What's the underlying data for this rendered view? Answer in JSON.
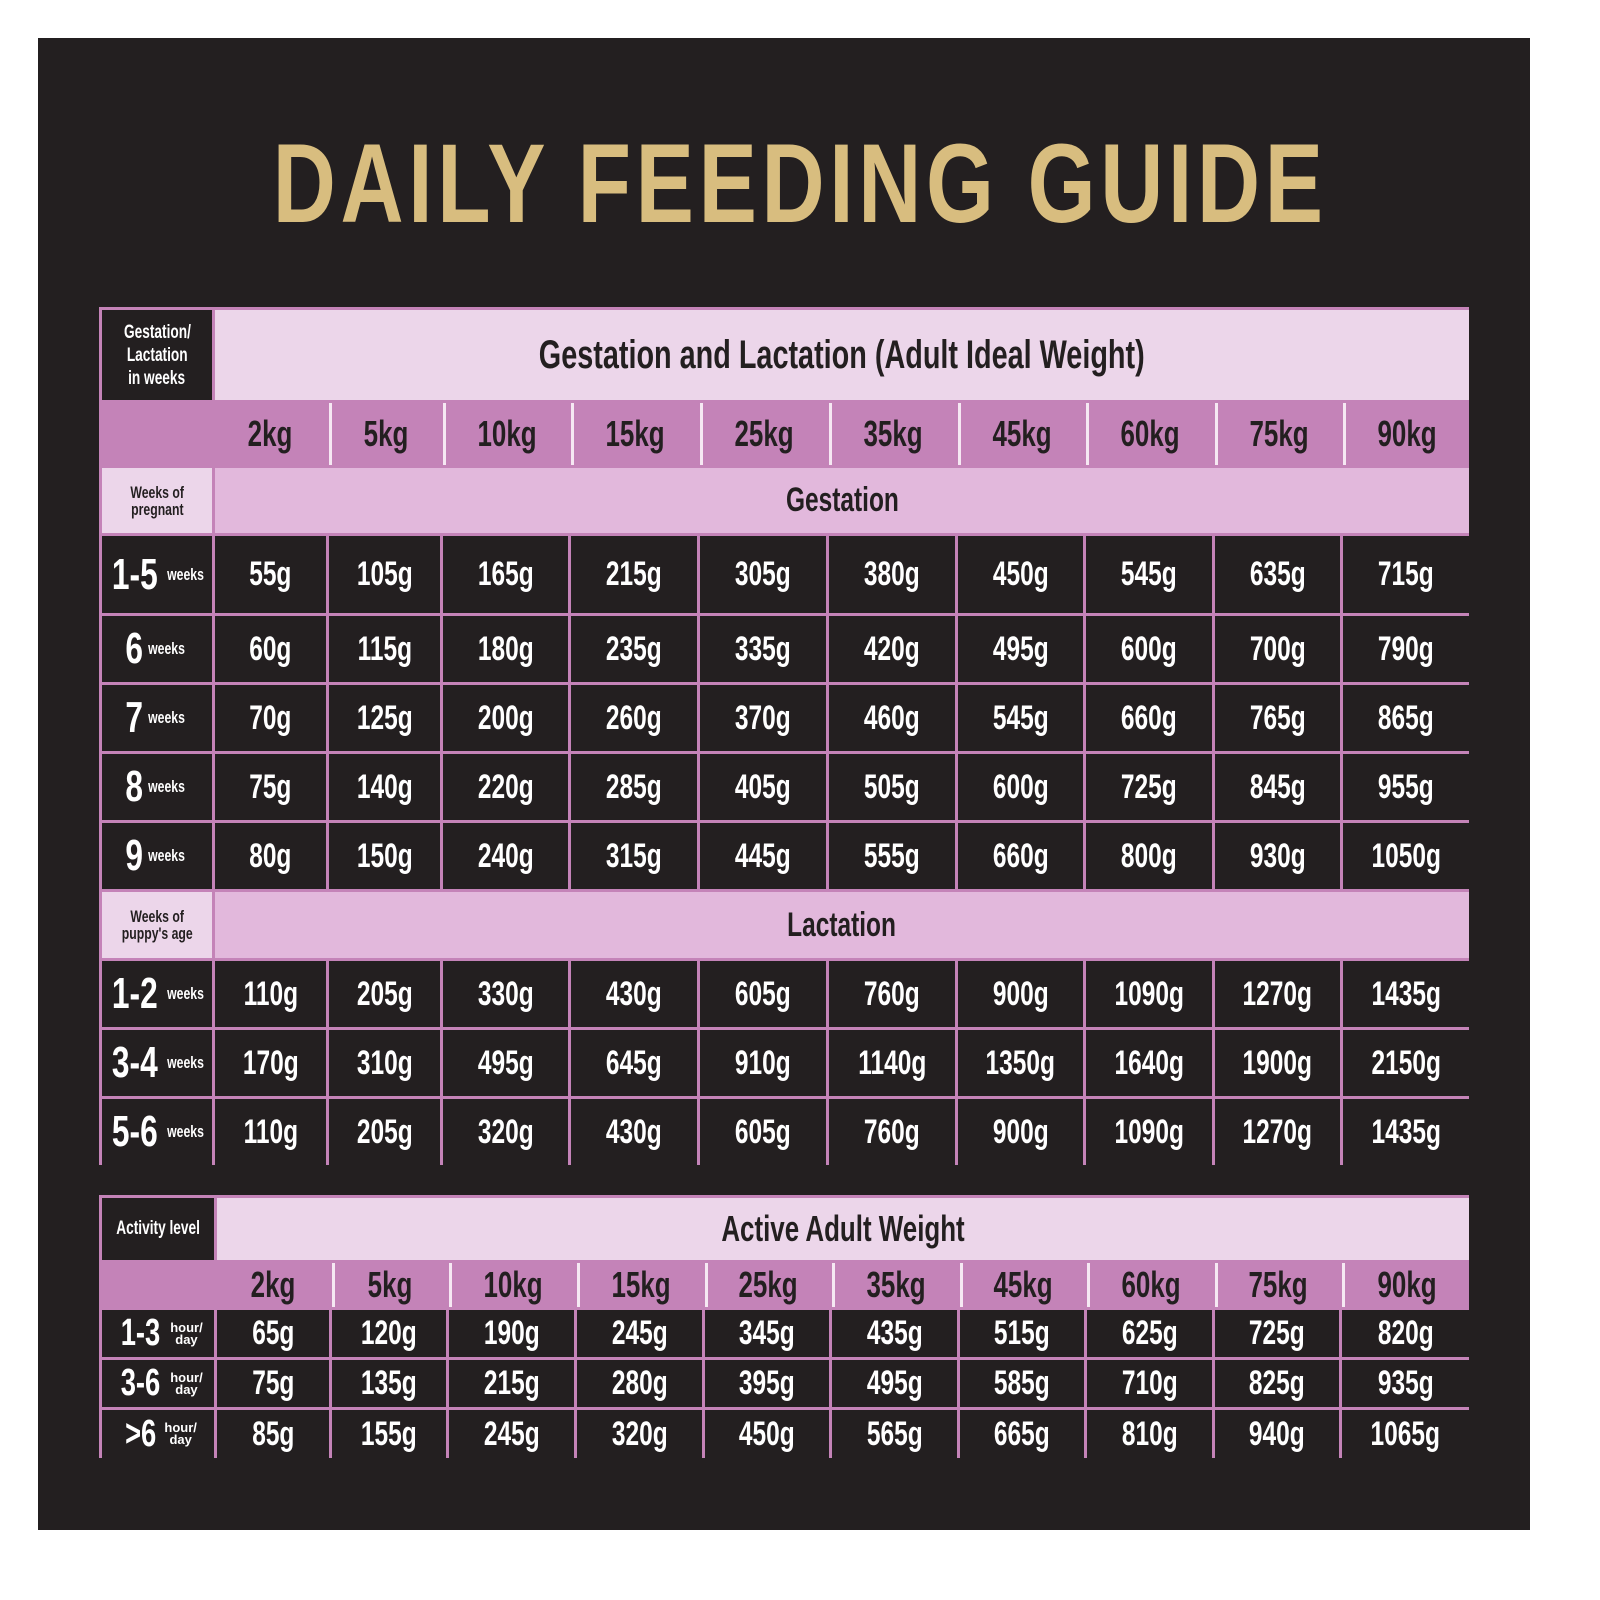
{
  "title": "DAILY FEEDING GUIDE",
  "colors": {
    "background": "#231f20",
    "title": "#d8bd7f",
    "header_light": "#ecd6ea",
    "header_mid": "#c483b8",
    "section": "#e2b8dc"
  },
  "table1": {
    "corner": [
      "Gestation/",
      "Lactation",
      "in weeks"
    ],
    "title": "Gestation and Lactation (Adult Ideal Weight)",
    "weights": [
      "2kg",
      "5kg",
      "10kg",
      "15kg",
      "25kg",
      "35kg",
      "45kg",
      "60kg",
      "75kg",
      "90kg"
    ],
    "gestation": {
      "label": "Gestation",
      "sub": [
        "Weeks of",
        "pregnant"
      ],
      "rows": [
        {
          "num": "1-5",
          "unit": "weeks",
          "values": [
            "55g",
            "105g",
            "165g",
            "215g",
            "305g",
            "380g",
            "450g",
            "545g",
            "635g",
            "715g"
          ]
        },
        {
          "num": "6",
          "unit": "weeks",
          "values": [
            "60g",
            "115g",
            "180g",
            "235g",
            "335g",
            "420g",
            "495g",
            "600g",
            "700g",
            "790g"
          ]
        },
        {
          "num": "7",
          "unit": "weeks",
          "values": [
            "70g",
            "125g",
            "200g",
            "260g",
            "370g",
            "460g",
            "545g",
            "660g",
            "765g",
            "865g"
          ]
        },
        {
          "num": "8",
          "unit": "weeks",
          "values": [
            "75g",
            "140g",
            "220g",
            "285g",
            "405g",
            "505g",
            "600g",
            "725g",
            "845g",
            "955g"
          ]
        },
        {
          "num": "9",
          "unit": "weeks",
          "values": [
            "80g",
            "150g",
            "240g",
            "315g",
            "445g",
            "555g",
            "660g",
            "800g",
            "930g",
            "1050g"
          ]
        }
      ]
    },
    "lactation": {
      "label": "Lactation",
      "sub": [
        "Weeks of",
        "puppy's age"
      ],
      "rows": [
        {
          "num": "1-2",
          "unit": "weeks",
          "values": [
            "110g",
            "205g",
            "330g",
            "430g",
            "605g",
            "760g",
            "900g",
            "1090g",
            "1270g",
            "1435g"
          ]
        },
        {
          "num": "3-4",
          "unit": "weeks",
          "values": [
            "170g",
            "310g",
            "495g",
            "645g",
            "910g",
            "1140g",
            "1350g",
            "1640g",
            "1900g",
            "2150g"
          ]
        },
        {
          "num": "5-6",
          "unit": "weeks",
          "values": [
            "110g",
            "205g",
            "320g",
            "430g",
            "605g",
            "760g",
            "900g",
            "1090g",
            "1270g",
            "1435g"
          ]
        }
      ]
    }
  },
  "table2": {
    "corner": "Activity level",
    "title": "Active Adult Weight",
    "weights": [
      "2kg",
      "5kg",
      "10kg",
      "15kg",
      "25kg",
      "35kg",
      "45kg",
      "60kg",
      "75kg",
      "90kg"
    ],
    "rows": [
      {
        "num": "1-3",
        "unit": [
          "hour/",
          "day"
        ],
        "values": [
          "65g",
          "120g",
          "190g",
          "245g",
          "345g",
          "435g",
          "515g",
          "625g",
          "725g",
          "820g"
        ]
      },
      {
        "num": "3-6",
        "unit": [
          "hour/",
          "day"
        ],
        "values": [
          "75g",
          "135g",
          "215g",
          "280g",
          "395g",
          "495g",
          "585g",
          "710g",
          "825g",
          "935g"
        ]
      },
      {
        "num": ">6",
        "unit": [
          "hour/",
          "day"
        ],
        "values": [
          "85g",
          "155g",
          "245g",
          "320g",
          "450g",
          "565g",
          "665g",
          "810g",
          "940g",
          "1065g"
        ]
      }
    ]
  }
}
